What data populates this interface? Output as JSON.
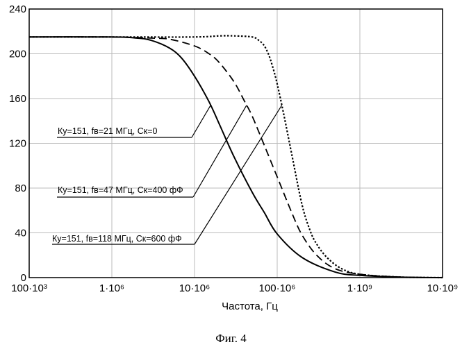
{
  "chart_data": {
    "type": "line",
    "title": "",
    "xlabel": "Частота, Гц",
    "ylabel": "",
    "xscale": "log",
    "xlim": [
      100000,
      10000000000
    ],
    "ylim": [
      0,
      240
    ],
    "x_ticks": [
      100000,
      1000000,
      10000000,
      100000000,
      1000000000,
      10000000000
    ],
    "x_tick_labels": [
      "100·10³",
      "1·10⁶",
      "10·10⁶",
      "100·10⁶",
      "1·10⁹",
      "10·10⁹"
    ],
    "y_ticks": [
      0,
      40,
      80,
      120,
      160,
      200,
      240
    ],
    "y_tick_labels": [
      "0",
      "40",
      "80",
      "120",
      "160",
      "200",
      "240"
    ],
    "series": [
      {
        "name": "Ку=151, fв=21 МГц, Ск=0",
        "style": "solid",
        "x": [
          100000,
          1000000,
          2000000,
          3000000,
          5000000,
          7000000,
          10000000,
          15000000,
          20000000,
          30000000,
          50000000,
          70000000,
          100000000,
          200000000,
          500000000,
          1000000000,
          3000000000,
          10000000000
        ],
        "y": [
          215,
          215,
          214,
          212,
          205,
          196,
          180,
          157,
          137,
          108,
          76,
          58,
          39,
          18,
          5,
          2,
          0.5,
          0
        ]
      },
      {
        "name": "Ку=151, fв=47 МГц, Ск=400 фФ",
        "style": "dashed",
        "x": [
          100000,
          1000000,
          3000000,
          5000000,
          10000000,
          15000000,
          20000000,
          30000000,
          40000000,
          50000000,
          70000000,
          100000000,
          150000000,
          200000000,
          300000000,
          500000000,
          1000000000,
          3000000000,
          10000000000
        ],
        "y": [
          215,
          215,
          214,
          213,
          207,
          200,
          192,
          175,
          158,
          144,
          118,
          90,
          58,
          38,
          20,
          8,
          3,
          0.5,
          0
        ]
      },
      {
        "name": "Ку=151, fв=118 МГц, Ск=600 фФ",
        "style": "dotted",
        "x": [
          100000,
          1000000,
          10000000,
          20000000,
          30000000,
          50000000,
          60000000,
          70000000,
          80000000,
          90000000,
          100000000,
          120000000,
          150000000,
          200000000,
          250000000,
          300000000,
          400000000,
          600000000,
          1000000000,
          3000000000,
          10000000000
        ],
        "y": [
          215,
          215,
          215,
          216,
          216,
          215,
          212,
          207,
          198,
          186,
          173,
          146,
          110,
          65,
          42,
          30,
          18,
          8,
          3,
          0.5,
          0
        ]
      }
    ],
    "annotations": [
      {
        "text": "Ку=151, fв=21 МГц, Ск=0"
      },
      {
        "text": "Ку=151, fв=47 МГц, Ск=400 фФ"
      },
      {
        "text": "Ку=151, fв=118 МГц, Ск=600 фФ"
      }
    ]
  },
  "caption": "Фиг. 4"
}
